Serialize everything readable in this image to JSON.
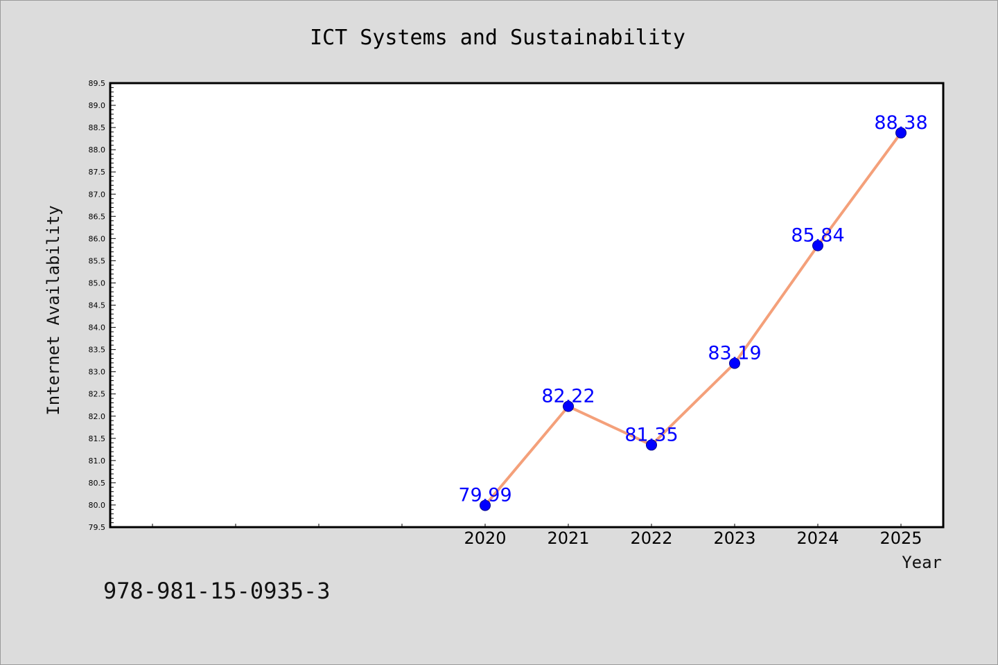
{
  "chart_data": {
    "type": "line",
    "title": "ICT Systems and Sustainability",
    "xlabel": "Year",
    "ylabel": "Internet Availability",
    "categories": [
      "2020",
      "2021",
      "2022",
      "2023",
      "2024",
      "2025"
    ],
    "series": [
      {
        "values": [
          79.99,
          82.22,
          81.35,
          83.19,
          85.84,
          88.38
        ]
      }
    ],
    "data_labels": [
      "79.99",
      "82.22",
      "81.35",
      "83.19",
      "85.84",
      "88.38"
    ],
    "ylim": [
      79.5,
      89.5
    ],
    "yticks": [
      "79.5",
      "80.0",
      "80.5",
      "81.0",
      "81.5",
      "82.0",
      "82.5",
      "83.0",
      "83.5",
      "84.0",
      "84.5",
      "85.0",
      "85.5",
      "86.0",
      "86.5",
      "87.0",
      "87.5",
      "88.0",
      "88.5",
      "89.0",
      "89.5"
    ],
    "grid": false,
    "colors": {
      "line": "#f4a07a",
      "marker": "#0000ff",
      "label": "#0000ff",
      "background": "#dcdcdc",
      "plot_background": "#ffffff"
    }
  },
  "footnote": "978-981-15-0935-3"
}
